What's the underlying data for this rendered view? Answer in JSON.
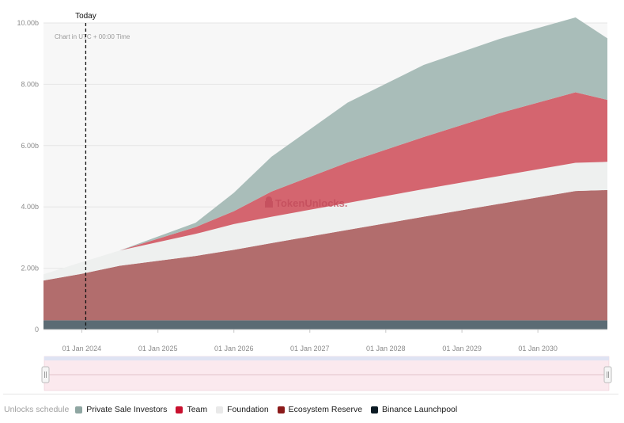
{
  "chart_data": {
    "type": "area",
    "stacked": true,
    "x": [
      "2023-07-01",
      "2024-01-01",
      "2024-07-01",
      "2025-07-01",
      "2026-01-01",
      "2026-07-01",
      "2027-07-01",
      "2028-07-01",
      "2029-07-01",
      "2030-07-01",
      "2030-12-01"
    ],
    "series": [
      {
        "name": "Binance Launchpool",
        "color": "#5b6b74",
        "values": [
          0.3,
          0.3,
          0.3,
          0.3,
          0.3,
          0.3,
          0.3,
          0.3,
          0.3,
          0.3,
          0.3
        ]
      },
      {
        "name": "Ecosystem Reserve",
        "color": "#b26d6d",
        "values": [
          1.3,
          1.52,
          1.78,
          2.1,
          2.3,
          2.52,
          2.95,
          3.38,
          3.8,
          4.22,
          4.25
        ]
      },
      {
        "name": "Foundation",
        "color": "#eef0ef",
        "values": [
          0.2,
          0.38,
          0.5,
          0.72,
          0.84,
          0.86,
          0.88,
          0.9,
          0.91,
          0.92,
          0.92
        ]
      },
      {
        "name": "Team",
        "color": "#d4656f",
        "values": [
          0.0,
          0.0,
          0.0,
          0.22,
          0.42,
          0.82,
          1.32,
          1.7,
          2.05,
          2.3,
          2.02
        ]
      },
      {
        "name": "Private Sale Investors",
        "color": "#a9bdb9",
        "values": [
          0.0,
          0.0,
          0.0,
          0.14,
          0.6,
          1.14,
          1.95,
          2.35,
          2.42,
          2.44,
          2.01
        ]
      }
    ],
    "xticks": [
      {
        "date": "2024-01-01",
        "label": "01 Jan 2024"
      },
      {
        "date": "2025-01-01",
        "label": "01 Jan 2025"
      },
      {
        "date": "2026-01-01",
        "label": "01 Jan 2026"
      },
      {
        "date": "2027-01-01",
        "label": "01 Jan 2027"
      },
      {
        "date": "2028-01-01",
        "label": "01 Jan 2028"
      },
      {
        "date": "2029-01-01",
        "label": "01 Jan 2029"
      },
      {
        "date": "2030-01-01",
        "label": "01 Jan 2030"
      }
    ],
    "yticks": [
      {
        "value": 0,
        "label": "0"
      },
      {
        "value": 2,
        "label": "2.00b"
      },
      {
        "value": 4,
        "label": "4.00b"
      },
      {
        "value": 6,
        "label": "6.00b"
      },
      {
        "value": 8,
        "label": "8.00b"
      },
      {
        "value": 10,
        "label": "10.00b"
      }
    ],
    "ylim": [
      0,
      10
    ],
    "xlim": [
      "2023-07-01",
      "2030-12-01"
    ],
    "today": {
      "date": "2024-01-20",
      "label": "Today"
    },
    "note": "Chart in UTC + 00:00 Time",
    "watermark": "TokenUnlocks.",
    "grid": true,
    "legend_position": "bottom-left"
  },
  "legend": {
    "title": "Unlocks schedule",
    "items": [
      {
        "name": "Private Sale Investors",
        "color": "#8fa6a2"
      },
      {
        "name": "Team",
        "color": "#c8102e"
      },
      {
        "name": "Foundation",
        "color": "#e9e9e9"
      },
      {
        "name": "Ecosystem Reserve",
        "color": "#8b1a1a"
      },
      {
        "name": "Binance Launchpool",
        "color": "#0b1a24"
      }
    ]
  }
}
